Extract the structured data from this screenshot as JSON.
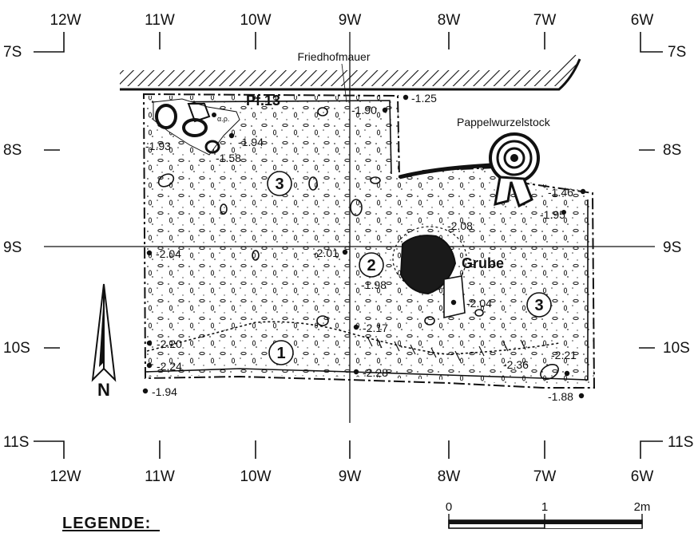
{
  "grid": {
    "columns": [
      "12W",
      "11W",
      "10W",
      "9W",
      "8W",
      "7W",
      "6W"
    ],
    "rows": [
      "7S",
      "8S",
      "9S",
      "10S",
      "11S"
    ]
  },
  "labels": {
    "wall": "Friedhofmauer",
    "stump": "Pappelwurzelstock",
    "posthole": "Pf.13",
    "pit": "Grube",
    "north": "N",
    "legend": "LEGENDE:"
  },
  "zones": [
    "1",
    "2",
    "3",
    "3"
  ],
  "elevations": [
    "-1.25",
    "-1.90",
    "-1.93",
    "-1.94",
    "-1.58",
    "-1.46",
    "-1.95",
    "-2.08",
    "-2.04",
    "-2.01",
    "-1.98",
    "-2.04",
    "-2.17",
    "-2.20",
    "-2.24",
    "-2.28",
    "-2.36",
    "-2.21",
    "-1.94",
    "-1.88"
  ],
  "scale": {
    "labels": [
      "0",
      "1",
      "2m"
    ]
  }
}
